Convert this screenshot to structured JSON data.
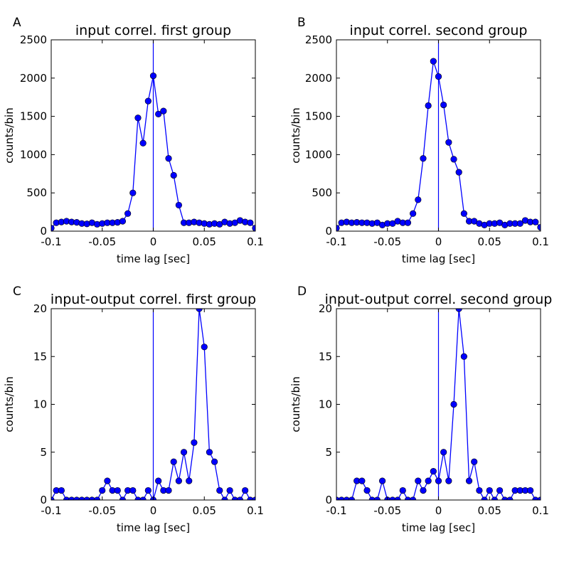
{
  "chart_data": [
    {
      "type": "line",
      "panel_letter": "A",
      "title": "input correl. first group",
      "xlabel": "time lag [sec]",
      "ylabel": "counts/bin",
      "xlim": [
        -0.1,
        0.1
      ],
      "ylim": [
        0,
        2500
      ],
      "xticks": [
        -0.1,
        -0.05,
        0,
        0.05,
        0.1
      ],
      "xtick_labels": [
        "-0.1",
        "-0.05",
        "0",
        "0.05",
        "0.1"
      ],
      "yticks": [
        0,
        500,
        1000,
        1500,
        2000,
        2500
      ],
      "ytick_labels": [
        "0",
        "500",
        "1000",
        "1500",
        "2000",
        "2500"
      ],
      "vline_x": 0,
      "grid": false,
      "series": [
        {
          "color": "#0000ff",
          "x": [
            -0.1,
            -0.095,
            -0.09,
            -0.085,
            -0.08,
            -0.075,
            -0.07,
            -0.065,
            -0.06,
            -0.055,
            -0.05,
            -0.045,
            -0.04,
            -0.035,
            -0.03,
            -0.025,
            -0.02,
            -0.015,
            -0.01,
            -0.005,
            0,
            0.005,
            0.01,
            0.015,
            0.02,
            0.025,
            0.03,
            0.035,
            0.04,
            0.045,
            0.05,
            0.055,
            0.06,
            0.065,
            0.07,
            0.075,
            0.08,
            0.085,
            0.09,
            0.095,
            0.1
          ],
          "y": [
            40,
            110,
            120,
            130,
            120,
            115,
            100,
            95,
            110,
            90,
            100,
            110,
            110,
            115,
            130,
            230,
            500,
            1480,
            1150,
            1700,
            2030,
            1530,
            1570,
            950,
            730,
            340,
            110,
            110,
            120,
            110,
            100,
            90,
            100,
            90,
            120,
            100,
            110,
            140,
            120,
            110,
            40
          ]
        }
      ]
    },
    {
      "type": "line",
      "panel_letter": "B",
      "title": "input correl. second group",
      "xlabel": "time lag [sec]",
      "ylabel": "counts/bin",
      "xlim": [
        -0.1,
        0.1
      ],
      "ylim": [
        0,
        2500
      ],
      "xticks": [
        -0.1,
        -0.05,
        0,
        0.05,
        0.1
      ],
      "xtick_labels": [
        "-0.1",
        "-0.05",
        "0",
        "0.05",
        "0.1"
      ],
      "yticks": [
        0,
        500,
        1000,
        1500,
        2000,
        2500
      ],
      "ytick_labels": [
        "0",
        "500",
        "1000",
        "1500",
        "2000",
        "2500"
      ],
      "vline_x": 0,
      "grid": false,
      "series": [
        {
          "color": "#0000ff",
          "x": [
            -0.1,
            -0.095,
            -0.09,
            -0.085,
            -0.08,
            -0.075,
            -0.07,
            -0.065,
            -0.06,
            -0.055,
            -0.05,
            -0.045,
            -0.04,
            -0.035,
            -0.03,
            -0.025,
            -0.02,
            -0.015,
            -0.01,
            -0.005,
            0,
            0.005,
            0.01,
            0.015,
            0.02,
            0.025,
            0.03,
            0.035,
            0.04,
            0.045,
            0.05,
            0.055,
            0.06,
            0.065,
            0.07,
            0.075,
            0.08,
            0.085,
            0.09,
            0.095,
            0.1
          ],
          "y": [
            40,
            110,
            120,
            110,
            115,
            110,
            110,
            100,
            110,
            80,
            100,
            100,
            130,
            110,
            110,
            230,
            410,
            950,
            1640,
            2220,
            2020,
            1650,
            1160,
            940,
            770,
            230,
            130,
            130,
            100,
            80,
            100,
            100,
            110,
            80,
            100,
            100,
            100,
            140,
            120,
            120,
            50
          ]
        }
      ]
    },
    {
      "type": "line",
      "panel_letter": "C",
      "title": "input-output correl. first group",
      "xlabel": "time lag [sec]",
      "ylabel": "counts/bin",
      "xlim": [
        -0.1,
        0.1
      ],
      "ylim": [
        0,
        20
      ],
      "xticks": [
        -0.1,
        -0.05,
        0,
        0.05,
        0.1
      ],
      "xtick_labels": [
        "-0.1",
        "-0.05",
        "0",
        "0.05",
        "0.1"
      ],
      "yticks": [
        0,
        5,
        10,
        15,
        20
      ],
      "ytick_labels": [
        "0",
        "5",
        "10",
        "15",
        "20"
      ],
      "vline_x": 0,
      "grid": false,
      "series": [
        {
          "color": "#0000ff",
          "x": [
            -0.1,
            -0.095,
            -0.09,
            -0.085,
            -0.08,
            -0.075,
            -0.07,
            -0.065,
            -0.06,
            -0.055,
            -0.05,
            -0.045,
            -0.04,
            -0.035,
            -0.03,
            -0.025,
            -0.02,
            -0.015,
            -0.01,
            -0.005,
            0,
            0.005,
            0.01,
            0.015,
            0.02,
            0.025,
            0.03,
            0.035,
            0.04,
            0.045,
            0.05,
            0.055,
            0.06,
            0.065,
            0.07,
            0.075,
            0.08,
            0.085,
            0.09,
            0.095,
            0.1
          ],
          "y": [
            0,
            1,
            1,
            0,
            0,
            0,
            0,
            0,
            0,
            0,
            1,
            2,
            1,
            1,
            0,
            1,
            1,
            0,
            0,
            1,
            0,
            2,
            1,
            1,
            4,
            2,
            5,
            2,
            6,
            20,
            16,
            5,
            4,
            1,
            0,
            1,
            0,
            0,
            1,
            0,
            0
          ]
        }
      ]
    },
    {
      "type": "line",
      "panel_letter": "D",
      "title": "input-output correl. second group",
      "xlabel": "time lag [sec]",
      "ylabel": "counts/bin",
      "xlim": [
        -0.1,
        0.1
      ],
      "ylim": [
        0,
        20
      ],
      "xticks": [
        -0.1,
        -0.05,
        0,
        0.05,
        0.1
      ],
      "xtick_labels": [
        "-0.1",
        "-0.05",
        "0",
        "0.05",
        "0.1"
      ],
      "yticks": [
        0,
        5,
        10,
        15,
        20
      ],
      "ytick_labels": [
        "0",
        "5",
        "10",
        "15",
        "20"
      ],
      "vline_x": 0,
      "grid": false,
      "series": [
        {
          "color": "#0000ff",
          "x": [
            -0.1,
            -0.095,
            -0.09,
            -0.085,
            -0.08,
            -0.075,
            -0.07,
            -0.065,
            -0.06,
            -0.055,
            -0.05,
            -0.045,
            -0.04,
            -0.035,
            -0.03,
            -0.025,
            -0.02,
            -0.015,
            -0.01,
            -0.005,
            0,
            0.005,
            0.01,
            0.015,
            0.02,
            0.025,
            0.03,
            0.035,
            0.04,
            0.045,
            0.05,
            0.055,
            0.06,
            0.065,
            0.07,
            0.075,
            0.08,
            0.085,
            0.09,
            0.095,
            0.1
          ],
          "y": [
            0,
            0,
            0,
            0,
            2,
            2,
            1,
            0,
            0,
            2,
            0,
            0,
            0,
            1,
            0,
            0,
            2,
            1,
            2,
            3,
            2,
            5,
            2,
            10,
            20,
            15,
            2,
            4,
            1,
            0,
            1,
            0,
            1,
            0,
            0,
            1,
            1,
            1,
            1,
            0,
            0
          ]
        }
      ]
    }
  ]
}
